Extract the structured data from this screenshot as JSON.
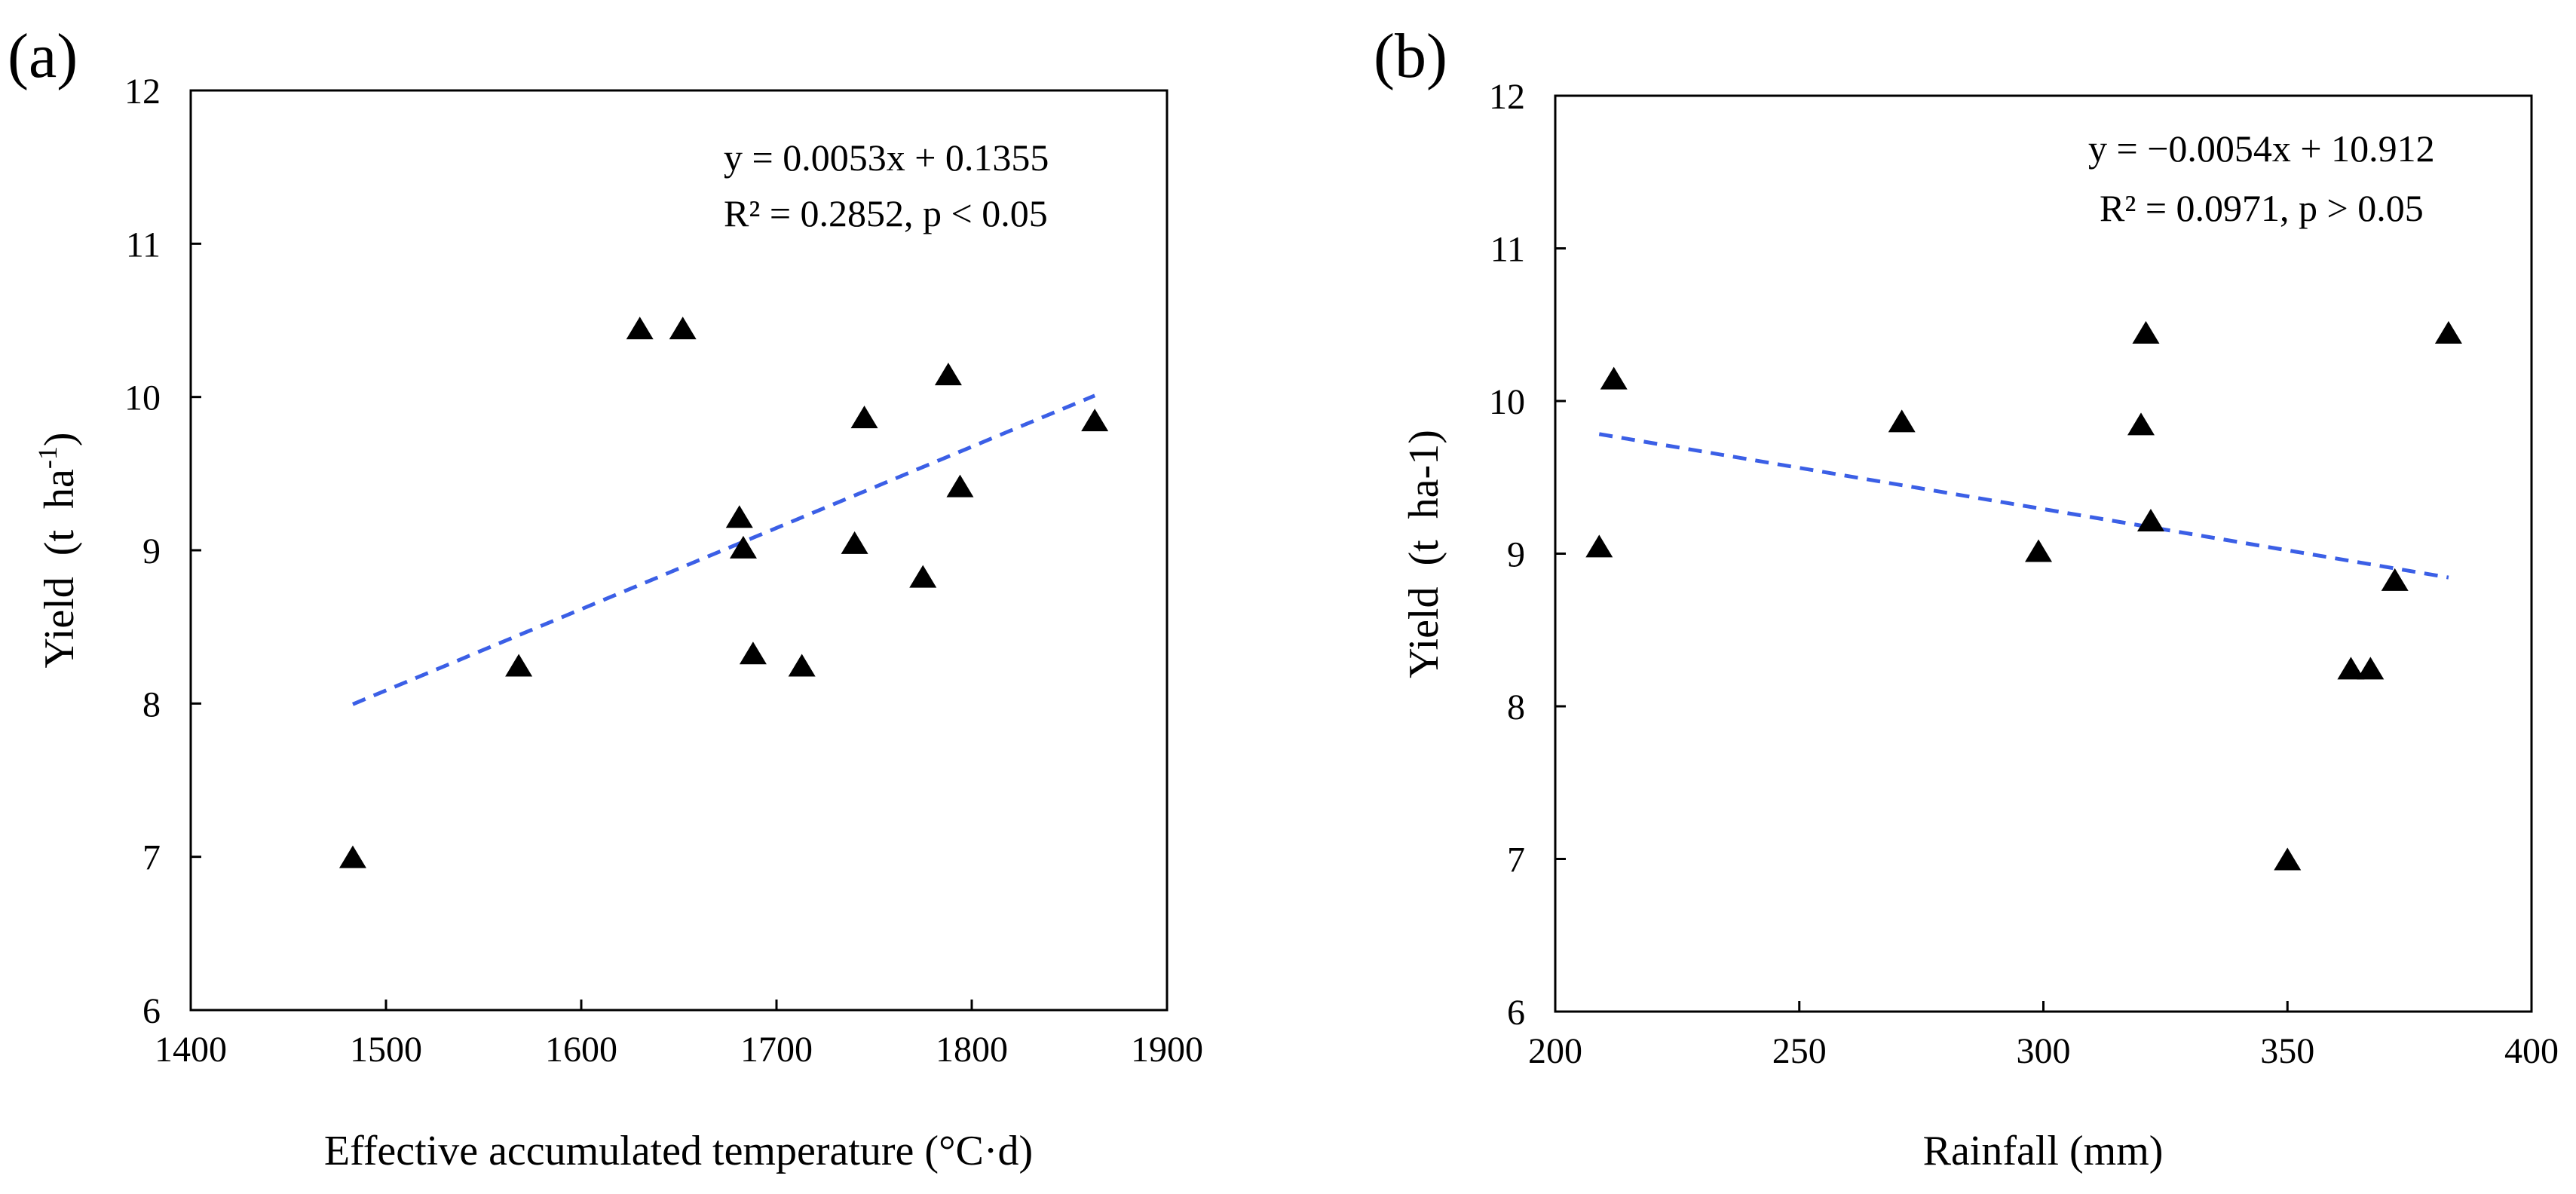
{
  "chart_data": [
    {
      "type": "scatter",
      "panel_label": "(a)",
      "xlabel": "Effective accumulated temperature (°C·d)",
      "ylabel_main": "Yield (t ha",
      "ylabel_sup": "-1",
      "ylabel_end": ")",
      "xlim": [
        1400,
        1900
      ],
      "ylim": [
        6,
        12
      ],
      "xticks": [
        1400,
        1500,
        1600,
        1700,
        1800,
        1900
      ],
      "yticks": [
        6,
        7,
        8,
        9,
        10,
        11,
        12
      ],
      "equation": "y = 0.0053x + 0.1355",
      "r2_text": "R² = 0.2852, p < 0.05",
      "trendline": {
        "slope": 0.0053,
        "intercept": 0.1355,
        "x_start": 1483,
        "x_end": 1863,
        "color": "#3b5fe6"
      },
      "marker_color": "#000000",
      "x": [
        1483,
        1568,
        1630,
        1652,
        1681,
        1683,
        1688,
        1713,
        1740,
        1745,
        1775,
        1788,
        1794,
        1863
      ],
      "y": [
        7.0,
        8.25,
        10.45,
        10.45,
        9.22,
        9.02,
        8.33,
        8.25,
        9.05,
        9.87,
        8.83,
        10.15,
        9.42,
        9.85
      ]
    },
    {
      "type": "scatter",
      "panel_label": "(b)",
      "xlabel": "Rainfall (mm)",
      "ylabel_main": "Yield (t ha-1)",
      "ylabel_sup": "",
      "ylabel_end": "",
      "xlim": [
        200,
        400
      ],
      "ylim": [
        6,
        12
      ],
      "xticks": [
        200,
        250,
        300,
        350,
        400
      ],
      "yticks": [
        6,
        7,
        8,
        9,
        10,
        11,
        12
      ],
      "equation": "y = −0.0054x + 10.912",
      "r2_text": "R² = 0.0971, p > 0.05",
      "trendline": {
        "slope": -0.0054,
        "intercept": 10.912,
        "x_start": 209,
        "x_end": 383,
        "color": "#3b5fe6"
      },
      "marker_color": "#000000",
      "x": [
        209,
        212,
        271,
        299,
        320,
        321,
        322,
        350,
        363,
        367,
        372,
        383
      ],
      "y": [
        9.05,
        10.15,
        9.87,
        9.02,
        9.85,
        10.45,
        9.22,
        7.0,
        8.25,
        8.25,
        8.83,
        10.45
      ]
    }
  ]
}
